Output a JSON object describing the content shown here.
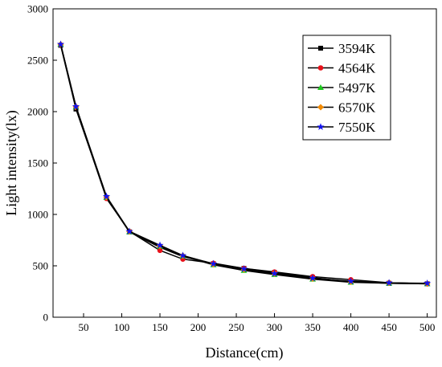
{
  "chart_data": {
    "type": "line",
    "title": "",
    "xlabel": "Distance(cm)",
    "ylabel": "Light intensity(lx)",
    "xlim": [
      10,
      512
    ],
    "ylim": [
      0,
      3000
    ],
    "xticks": [
      50,
      100,
      150,
      200,
      250,
      300,
      350,
      400,
      450,
      500
    ],
    "yticks": [
      0,
      500,
      1000,
      1500,
      2000,
      2500,
      3000
    ],
    "grid": false,
    "legend_position": "top-right",
    "x": [
      20,
      40,
      80,
      110,
      150,
      180,
      220,
      260,
      300,
      350,
      400,
      450,
      500
    ],
    "series": [
      {
        "name": "3594K",
        "color": "#000000",
        "marker": "square",
        "values": [
          2645,
          2025,
          1165,
          830,
          680,
          590,
          520,
          475,
          435,
          385,
          345,
          330,
          325
        ]
      },
      {
        "name": "4564K",
        "color": "#e8111a",
        "marker": "circle",
        "values": [
          2650,
          2040,
          1155,
          835,
          650,
          565,
          525,
          475,
          440,
          395,
          365,
          335,
          325
        ]
      },
      {
        "name": "5497K",
        "color": "#1ec81e",
        "marker": "triangle",
        "values": [
          2655,
          2045,
          1165,
          830,
          690,
          595,
          510,
          455,
          415,
          370,
          340,
          330,
          325
        ]
      },
      {
        "name": "6570K",
        "color": "#f28a00",
        "marker": "diamond",
        "values": [
          2655,
          2050,
          1170,
          835,
          695,
          600,
          515,
          465,
          425,
          375,
          345,
          335,
          325
        ]
      },
      {
        "name": "7550K",
        "color": "#1414f0",
        "marker": "star",
        "values": [
          2655,
          2050,
          1175,
          835,
          700,
          600,
          520,
          470,
          425,
          380,
          350,
          335,
          330
        ]
      }
    ]
  }
}
